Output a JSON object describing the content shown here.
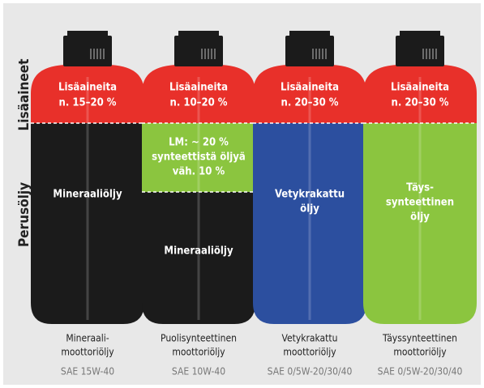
{
  "side_labels": [
    "Lisäaineet",
    "Perusöljy"
  ],
  "bottles": [
    {
      "additive_lines": [
        "Lisäaineita",
        "n. 15–20 %"
      ],
      "base_lines": [
        "Mineraaliöljy"
      ],
      "name_lines": [
        "Mineraali-",
        "moottoriöljy"
      ],
      "grade": "SAE 15W-40"
    },
    {
      "additive_lines": [
        "Lisäaineita",
        "n. 10–20 %"
      ],
      "synthetic_lines": [
        "LM: ~ 20 %",
        "synteettistä öljyä",
        "väh. 10 %"
      ],
      "base_lines": [
        "Mineraaliöljy"
      ],
      "name_lines": [
        "Puolisynteettinen",
        "moottoriöljy"
      ],
      "grade": "SAE 10W-40"
    },
    {
      "additive_lines": [
        "Lisäaineita",
        "n. 20–30 %"
      ],
      "base_lines": [
        "Vetykrakattu",
        "öljy"
      ],
      "name_lines": [
        "Vetykrakattu",
        "moottoriöljy"
      ],
      "grade": "SAE 0/5W-20/30/40"
    },
    {
      "additive_lines": [
        "Lisäaineita",
        "n. 20–30 %"
      ],
      "base_lines": [
        "Täys-",
        "synteettinen",
        "öljy"
      ],
      "name_lines": [
        "Täyssynteettinen",
        "moottoriöljy"
      ],
      "grade": "SAE 0/5W-20/30/40"
    }
  ]
}
